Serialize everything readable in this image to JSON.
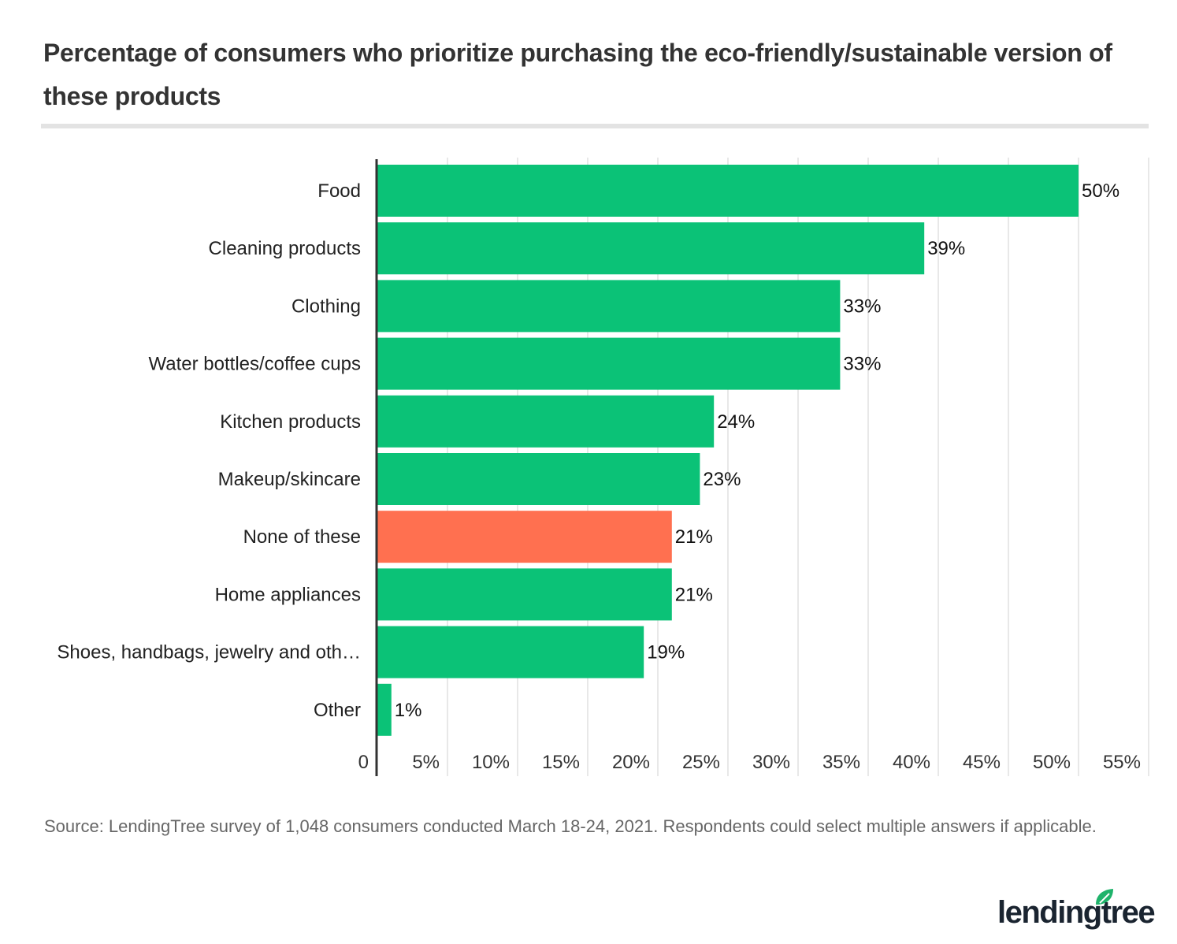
{
  "chart_data": {
    "type": "bar",
    "orientation": "horizontal",
    "title": "Percentage of consumers who prioritize purchasing the eco-friendly/sustainable version of these products",
    "categories": [
      "Food",
      "Cleaning products",
      "Clothing",
      "Water bottles/coffee cups",
      "Kitchen products",
      "Makeup/skincare",
      "None of these",
      "Home appliances",
      "Shoes, handbags, jewelry and oth…",
      "Other"
    ],
    "values": [
      50,
      39,
      33,
      33,
      24,
      23,
      21,
      21,
      19,
      1
    ],
    "data_labels": [
      "50%",
      "39%",
      "33%",
      "33%",
      "24%",
      "23%",
      "21%",
      "21%",
      "19%",
      "1%"
    ],
    "highlight": [
      false,
      false,
      false,
      false,
      false,
      false,
      true,
      false,
      false,
      false
    ],
    "colors": {
      "default": "#0bc277",
      "highlight": "#ff7050",
      "axis": "#333333",
      "grid": "#e0e0e0"
    },
    "xlim": [
      0,
      55
    ],
    "xticks": [
      0,
      5,
      10,
      15,
      20,
      25,
      30,
      35,
      40,
      45,
      50,
      55
    ],
    "xtick_labels": [
      "0",
      "5%",
      "10%",
      "15%",
      "20%",
      "25%",
      "30%",
      "35%",
      "40%",
      "45%",
      "50%",
      "55%"
    ],
    "grid": true,
    "xlabel": "",
    "ylabel": ""
  },
  "footer": {
    "source": "Source: LendingTree survey of 1,048 consumers conducted March 18-24, 2021. Respondents could select multiple answers if applicable.",
    "logo_text": "lendingtree"
  }
}
